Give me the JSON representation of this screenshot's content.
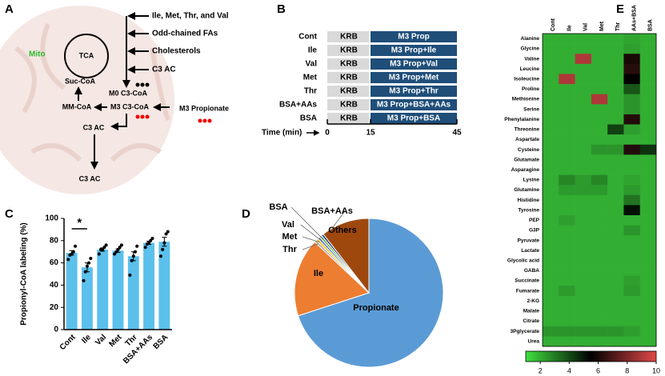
{
  "panel_a": {
    "label": "A",
    "compartment": "Mito",
    "cycle": "TCA",
    "sources": [
      "Ile, Met, Thr, and Val",
      "Odd-chained FAs",
      "Cholesterols",
      "C3 AC"
    ],
    "nodes": {
      "suc": "Suc-CoA",
      "m0": "M0 C3-CoA",
      "mm": "MM-CoA",
      "m3": "M3 C3-CoA",
      "propionate": "M3 Propionate",
      "ac1": "C3 AC",
      "ac2": "C3 AC"
    }
  },
  "panel_b": {
    "label": "B",
    "rows": [
      {
        "name": "Cont",
        "pre": "KRB",
        "treatment": "M3 Prop"
      },
      {
        "name": "Ile",
        "pre": "KRB",
        "treatment": "M3 Prop+Ile"
      },
      {
        "name": "Val",
        "pre": "KRB",
        "treatment": "M3 Prop+Val"
      },
      {
        "name": "Met",
        "pre": "KRB",
        "treatment": "M3 Prop+Met"
      },
      {
        "name": "Thr",
        "pre": "KRB",
        "treatment": "M3 Prop+Thr"
      },
      {
        "name": "BSA+AAs",
        "pre": "KRB",
        "treatment": "M3 Prop+BSA+AAs"
      },
      {
        "name": "BSA",
        "pre": "KRB",
        "treatment": "M3 Prop+BSA"
      }
    ],
    "time_label": "Time (min)",
    "time_ticks": [
      0,
      15,
      45
    ]
  },
  "chart_data": [
    {
      "type": "bar",
      "panel_label": "C",
      "ylabel": "Propionyl-CoA labeling (%)",
      "categories": [
        "Cont",
        "Ile",
        "Val",
        "Met",
        "Thr",
        "BSA+AAs",
        "BSA"
      ],
      "values": [
        69,
        56,
        72,
        71,
        66,
        78,
        79
      ],
      "errors": [
        2,
        4,
        1.5,
        1.5,
        4,
        1.5,
        4
      ],
      "points": [
        [
          63,
          67,
          68,
          70,
          75
        ],
        [
          44,
          52,
          57,
          60,
          64
        ],
        [
          68,
          72,
          72,
          74,
          76
        ],
        [
          68,
          70,
          72,
          74,
          76
        ],
        [
          49,
          62,
          66,
          70,
          75
        ],
        [
          74,
          77,
          78,
          80,
          82
        ],
        [
          66,
          72,
          78,
          86,
          88
        ]
      ],
      "annotation": "*",
      "color": "#5bc0eb",
      "ylim": [
        0,
        100
      ],
      "yticks": [
        0,
        20,
        40,
        60,
        80,
        100
      ]
    },
    {
      "type": "pie",
      "panel_label": "D",
      "categories": [
        "Propionate",
        "Ile",
        "Thr",
        "Met",
        "Val",
        "BSA",
        "BSA+AAs",
        "Others"
      ],
      "values": [
        70,
        17,
        0.5,
        0.5,
        0.5,
        0.5,
        0.5,
        10.5
      ],
      "colors": [
        "#5b9bd5",
        "#ed7d31",
        "#a5a5a5",
        "#ffc000",
        "#4472c4",
        "#70ad47",
        "#264478",
        "#9e480e"
      ]
    },
    {
      "type": "heatmap",
      "panel_label": "E",
      "rows": [
        "Alanine",
        "Glycine",
        "Valine",
        "Leucine",
        "Isoleucine",
        "Proline",
        "Methionine",
        "Serine",
        "Phenylalanine",
        "Threonine",
        "Aspartate",
        "Cysteine",
        "Glutamate",
        "Asparagine",
        "Lysine",
        "Glutamine",
        "Histidine",
        "Tyrosine",
        "PEP",
        "G3P",
        "Pyruvate",
        "Lactate",
        "Glycolic acid",
        "GABA",
        "Succinate",
        "Fumarate",
        "2-KG",
        "Malate",
        "Citrate",
        "3Pglycerate",
        "Urea"
      ],
      "columns": [
        "Cont",
        "Ile",
        "Val",
        "Met",
        "Thr",
        "AAs+BSA",
        "BSA"
      ],
      "values": [
        [
          2,
          2,
          2,
          2,
          2,
          2.2,
          2
        ],
        [
          2,
          2,
          2,
          2,
          2,
          2.3,
          2
        ],
        [
          2,
          2,
          9,
          2,
          2,
          6,
          2
        ],
        [
          2,
          2,
          2,
          2,
          2,
          6.3,
          2
        ],
        [
          2,
          9,
          2,
          2,
          2,
          5.5,
          2
        ],
        [
          2,
          2,
          2,
          2,
          2,
          3.8,
          2
        ],
        [
          2,
          2,
          2,
          9,
          2,
          2.5,
          2
        ],
        [
          2,
          2,
          2,
          2,
          2,
          2.5,
          2
        ],
        [
          2,
          2,
          2,
          2,
          2,
          6.2,
          2
        ],
        [
          2,
          2,
          2,
          2,
          4.2,
          2.3,
          2
        ],
        [
          2,
          2,
          2,
          2,
          2,
          2,
          2
        ],
        [
          2,
          2,
          2,
          2.5,
          2.5,
          6.2,
          4.5
        ],
        [
          2,
          2,
          2,
          2,
          2,
          2,
          2
        ],
        [
          2,
          2,
          2,
          2,
          2,
          2,
          2
        ],
        [
          2,
          2.8,
          2.4,
          2.8,
          2,
          2.2,
          2
        ],
        [
          2,
          2.4,
          2.4,
          2.4,
          2,
          2.4,
          2
        ],
        [
          2,
          2,
          2,
          2,
          2,
          3.2,
          2
        ],
        [
          2,
          2,
          2,
          2,
          2,
          5.2,
          2
        ],
        [
          2,
          2.3,
          2,
          2,
          2,
          2,
          2
        ],
        [
          2,
          2,
          2,
          2,
          2,
          2.5,
          2
        ],
        [
          2,
          2,
          2,
          2,
          2,
          2,
          2
        ],
        [
          2,
          2,
          2,
          2,
          2,
          2,
          2
        ],
        [
          2,
          2,
          2,
          2,
          2,
          2,
          2
        ],
        [
          2,
          2,
          2,
          2,
          2,
          2,
          2
        ],
        [
          2,
          2,
          2,
          2,
          2,
          2.3,
          2
        ],
        [
          2,
          2.4,
          2,
          2,
          2,
          2.4,
          2
        ],
        [
          2,
          2,
          2,
          2,
          2,
          2,
          2
        ],
        [
          2,
          2,
          2,
          2,
          2,
          2,
          2
        ],
        [
          2,
          2,
          2,
          2,
          2,
          2,
          2
        ],
        [
          2.5,
          2.5,
          2.5,
          2.5,
          2.5,
          2.3,
          2
        ],
        [
          2,
          2,
          2,
          2,
          2,
          2,
          2
        ]
      ],
      "clim": [
        1,
        10
      ],
      "colorscale": [
        "#40e040",
        "#000000",
        "#e04848"
      ],
      "colorbar_ticks": [
        2,
        4,
        6,
        8,
        10
      ]
    }
  ]
}
